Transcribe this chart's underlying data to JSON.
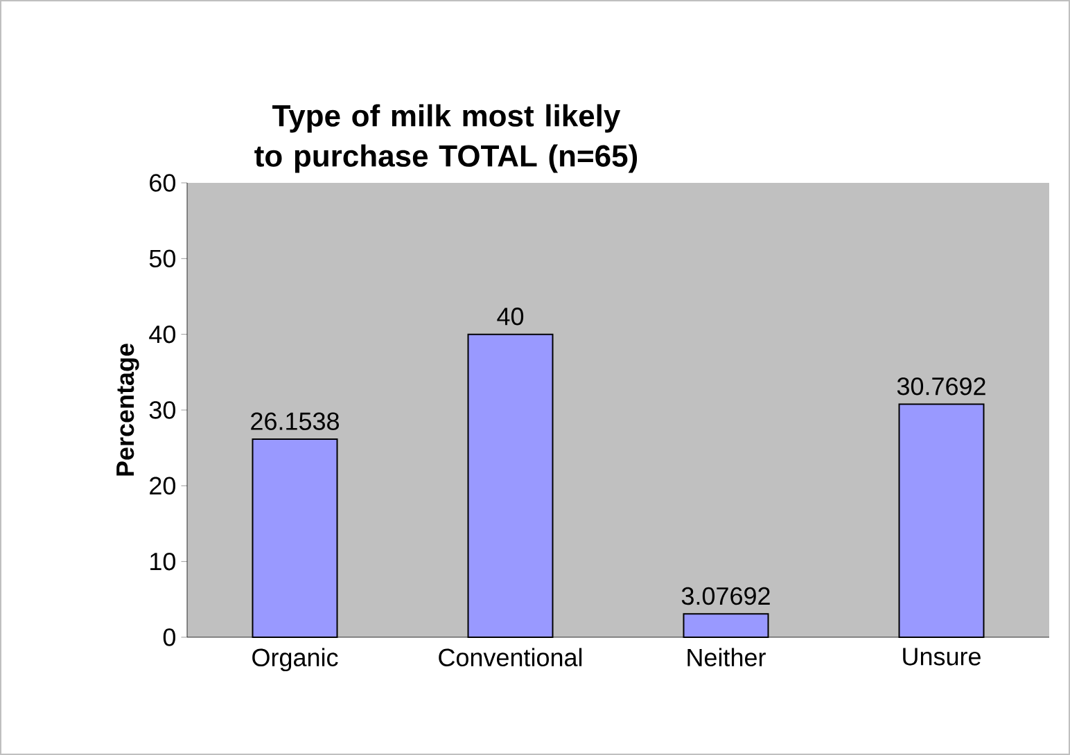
{
  "chart_data": {
    "type": "bar",
    "title": "Type of milk most likely to purchase TOTAL (n=65)",
    "ylabel": "Percentage",
    "categories": [
      "Organic",
      "Conventional",
      "Neither",
      "Unsure"
    ],
    "values": [
      26.1538,
      40,
      3.07692,
      30.7692
    ],
    "value_labels": [
      "26.1538",
      "40",
      "3.07692",
      "30.7692"
    ],
    "color": "#9999ff",
    "ylim": [
      0,
      60
    ],
    "yticks": [
      0,
      10,
      20,
      30,
      40,
      50,
      60
    ],
    "grid": false
  }
}
